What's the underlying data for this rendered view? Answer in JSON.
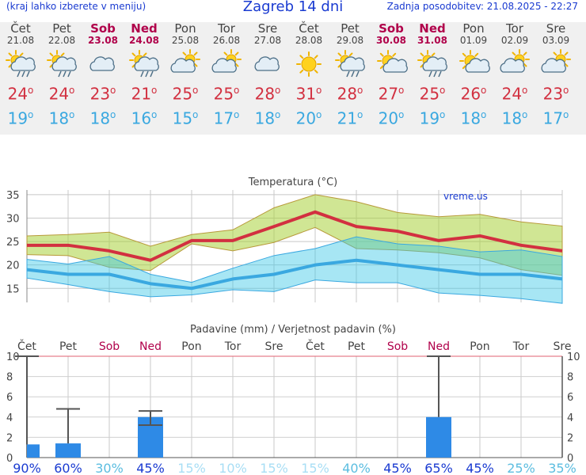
{
  "header": {
    "left": "(kraj lahko izberete v meniju)",
    "title": "Zagreb 14 dni",
    "updated": "Zadnja posodobitev: 21.08.2025 - 22:27"
  },
  "colors": {
    "max": "#d23040",
    "min": "#3aa8e0",
    "weekend": "#b0004a",
    "bar": "#2e8ae6"
  },
  "days": [
    {
      "name": "Čet",
      "date": "21.08",
      "weekend": false,
      "icon": "sun-cloud-rain-icon",
      "tmax": "24",
      "tmin": "19"
    },
    {
      "name": "Pet",
      "date": "22.08",
      "weekend": false,
      "icon": "sun-cloud-rain-icon",
      "tmax": "24",
      "tmin": "18"
    },
    {
      "name": "Sob",
      "date": "23.08",
      "weekend": true,
      "icon": "cloudy-icon",
      "tmax": "23",
      "tmin": "18"
    },
    {
      "name": "Ned",
      "date": "24.08",
      "weekend": true,
      "icon": "sun-cloud-rain-icon",
      "tmax": "21",
      "tmin": "16"
    },
    {
      "name": "Pon",
      "date": "25.08",
      "weekend": false,
      "icon": "partly-cloudy-icon",
      "tmax": "25",
      "tmin": "15"
    },
    {
      "name": "Tor",
      "date": "26.08",
      "weekend": false,
      "icon": "partly-cloudy-icon",
      "tmax": "25",
      "tmin": "17"
    },
    {
      "name": "Sre",
      "date": "27.08",
      "weekend": false,
      "icon": "cloudy-icon",
      "tmax": "28",
      "tmin": "18"
    },
    {
      "name": "Čet",
      "date": "28.08",
      "weekend": false,
      "icon": "sunny-icon",
      "tmax": "31",
      "tmin": "20"
    },
    {
      "name": "Pet",
      "date": "29.08",
      "weekend": false,
      "icon": "sun-cloud-rain-icon",
      "tmax": "28",
      "tmin": "21"
    },
    {
      "name": "Sob",
      "date": "30.08",
      "weekend": true,
      "icon": "sun-cloud-icon",
      "tmax": "27",
      "tmin": "20"
    },
    {
      "name": "Ned",
      "date": "31.08",
      "weekend": true,
      "icon": "sun-cloud-rain-icon",
      "tmax": "25",
      "tmin": "19"
    },
    {
      "name": "Pon",
      "date": "01.09",
      "weekend": false,
      "icon": "sun-cloud-icon",
      "tmax": "26",
      "tmin": "18"
    },
    {
      "name": "Tor",
      "date": "02.09",
      "weekend": false,
      "icon": "partly-cloudy-icon",
      "tmax": "24",
      "tmin": "18"
    },
    {
      "name": "Sre",
      "date": "03.09",
      "weekend": false,
      "icon": "partly-cloudy-icon",
      "tmax": "23",
      "tmin": "17"
    }
  ],
  "chart_data": [
    {
      "type": "line",
      "title": "Temperatura (°C)",
      "watermark": "vreme.us",
      "ylim": [
        12,
        36
      ],
      "yticks": [
        15,
        20,
        25,
        30,
        35
      ],
      "series": [
        {
          "values": [
            24.2,
            24.2,
            23,
            21,
            25.2,
            25.2,
            28.2,
            31.3,
            28.2,
            27.2,
            25.2,
            26.2,
            24.2,
            23
          ]
        },
        {
          "values": [
            19,
            18,
            18,
            16,
            15,
            17,
            18,
            20,
            21,
            20,
            19,
            18,
            18,
            17
          ]
        }
      ],
      "max_band_upper": [
        26.2,
        26.5,
        27,
        24,
        26.5,
        27.5,
        32.2,
        35,
        33.5,
        31.2,
        30.3,
        30.8,
        29.2,
        28.3
      ],
      "max_band_lower": [
        22.2,
        22,
        19.5,
        18.8,
        24.5,
        23,
        24.8,
        28,
        23.5,
        23.2,
        22.6,
        21.5,
        19,
        17.8
      ],
      "min_band_upper": [
        21.2,
        20.2,
        21.8,
        18,
        16.3,
        19.3,
        22,
        23.5,
        26,
        24.5,
        24,
        22.8,
        23.2,
        21.8
      ],
      "min_band_lower": [
        17.2,
        15.8,
        14.3,
        13.2,
        13.6,
        14.7,
        14.3,
        16.8,
        16.2,
        16.2,
        14,
        13.5,
        12.8,
        11.8
      ]
    },
    {
      "type": "bar",
      "title": "Padavine (mm) / Verjetnost padavin (%)",
      "ylim": [
        0,
        10
      ],
      "yticks": [
        0,
        2,
        4,
        6,
        8,
        10
      ],
      "values": [
        1.3,
        1.4,
        0,
        4,
        0,
        0,
        0,
        0,
        0,
        0,
        4,
        0,
        0,
        0
      ],
      "err_low": [
        0,
        0,
        0,
        3.2,
        0,
        0,
        0,
        0,
        0,
        0,
        0,
        0,
        0,
        0
      ],
      "err_high": [
        10,
        4.8,
        0,
        4.6,
        0,
        0,
        0,
        0,
        0,
        0,
        10,
        0,
        0,
        0
      ],
      "probability": [
        "90%",
        "60%",
        "30%",
        "45%",
        "15%",
        "10%",
        "15%",
        "15%",
        "40%",
        "45%",
        "65%",
        "45%",
        "25%",
        "35%"
      ],
      "probability_colors": [
        "#1a3bd1",
        "#1a3bd1",
        "#5bbde0",
        "#1a3bd1",
        "#a8def5",
        "#a8def5",
        "#a8def5",
        "#a8def5",
        "#5bbde0",
        "#1a3bd1",
        "#1a3bd1",
        "#1a3bd1",
        "#5bbde0",
        "#5bbde0"
      ]
    }
  ]
}
